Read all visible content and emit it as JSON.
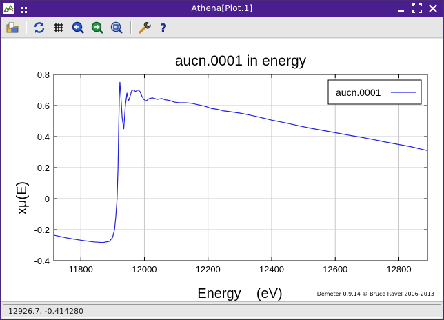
{
  "window": {
    "title": "Athena[Plot.1]"
  },
  "toolbar": {
    "buttons": [
      {
        "icon": "open-files-icon",
        "tooltip": ""
      },
      {
        "icon": "refresh-icon",
        "tooltip": ""
      },
      {
        "icon": "grid-icon",
        "tooltip": ""
      },
      {
        "icon": "zoom-out-icon",
        "tooltip": ""
      },
      {
        "icon": "zoom-in-icon",
        "tooltip": ""
      },
      {
        "icon": "zoom-fit-icon",
        "tooltip": ""
      },
      {
        "icon": "wrench-icon",
        "tooltip": ""
      },
      {
        "icon": "help-icon",
        "tooltip": ""
      }
    ]
  },
  "plot": {
    "credit": "Demeter 0.9.14 © Bruce Ravel 2006-2013",
    "colors": {
      "series": "#2020e0",
      "grid": "#c8c8c8",
      "axes": "#000000",
      "background": "#ffffff"
    }
  },
  "chart_data": {
    "type": "line",
    "title": "aucn.0001 in energy",
    "xlabel": "Energy    (eV)",
    "ylabel": "xμ(E)",
    "xlim": [
      11715,
      12890
    ],
    "ylim": [
      -0.4,
      0.8
    ],
    "xticks": [
      11800,
      12000,
      12200,
      12400,
      12600,
      12800
    ],
    "yticks": [
      -0.4,
      -0.2,
      0,
      0.2,
      0.4,
      0.6,
      0.8
    ],
    "grid": true,
    "legend_position": "top-right",
    "series": [
      {
        "name": "aucn.0001",
        "x": [
          11715,
          11760,
          11800,
          11840,
          11870,
          11890,
          11900,
          11906,
          11910,
          11914,
          11917,
          11919,
          11921,
          11923,
          11926,
          11930,
          11935,
          11940,
          11945,
          11950,
          11955,
          11960,
          11966,
          11972,
          11980,
          11986,
          11992,
          11998,
          12005,
          12015,
          12025,
          12040,
          12055,
          12065,
          12080,
          12095,
          12110,
          12130,
          12150,
          12170,
          12190,
          12210,
          12230,
          12250,
          12270,
          12300,
          12330,
          12360,
          12400,
          12440,
          12480,
          12520,
          12560,
          12600,
          12640,
          12680,
          12720,
          12760,
          12800,
          12840,
          12890
        ],
        "y": [
          -0.235,
          -0.255,
          -0.268,
          -0.279,
          -0.283,
          -0.275,
          -0.25,
          -0.2,
          -0.12,
          0.0,
          0.2,
          0.45,
          0.65,
          0.75,
          0.66,
          0.52,
          0.45,
          0.6,
          0.68,
          0.63,
          0.66,
          0.695,
          0.7,
          0.69,
          0.7,
          0.69,
          0.66,
          0.64,
          0.63,
          0.645,
          0.65,
          0.64,
          0.645,
          0.638,
          0.632,
          0.622,
          0.618,
          0.618,
          0.614,
          0.605,
          0.596,
          0.582,
          0.575,
          0.565,
          0.56,
          0.551,
          0.539,
          0.526,
          0.506,
          0.49,
          0.472,
          0.455,
          0.44,
          0.425,
          0.41,
          0.396,
          0.381,
          0.364,
          0.349,
          0.334,
          0.31
        ]
      }
    ]
  },
  "status": {
    "coordinates": "12926.7, -0.414280"
  }
}
